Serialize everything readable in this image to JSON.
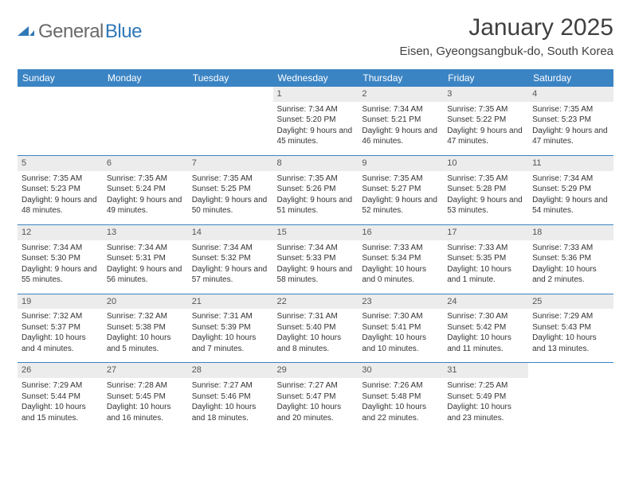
{
  "logo": {
    "text1": "General",
    "text2": "Blue"
  },
  "title": "January 2025",
  "location": "Eisen, Gyeongsangbuk-do, South Korea",
  "columns": [
    "Sunday",
    "Monday",
    "Tuesday",
    "Wednesday",
    "Thursday",
    "Friday",
    "Saturday"
  ],
  "colors": {
    "header_bg": "#3b84c4",
    "header_fg": "#ffffff",
    "daynum_bg": "#ececec",
    "border": "#3b84c4",
    "logo_gray": "#6a6a6a",
    "logo_blue": "#2f78b8"
  },
  "weeks": [
    [
      null,
      null,
      null,
      {
        "n": "1",
        "sr": "7:34 AM",
        "ss": "5:20 PM",
        "dl": "9 hours and 45 minutes."
      },
      {
        "n": "2",
        "sr": "7:34 AM",
        "ss": "5:21 PM",
        "dl": "9 hours and 46 minutes."
      },
      {
        "n": "3",
        "sr": "7:35 AM",
        "ss": "5:22 PM",
        "dl": "9 hours and 47 minutes."
      },
      {
        "n": "4",
        "sr": "7:35 AM",
        "ss": "5:23 PM",
        "dl": "9 hours and 47 minutes."
      }
    ],
    [
      {
        "n": "5",
        "sr": "7:35 AM",
        "ss": "5:23 PM",
        "dl": "9 hours and 48 minutes."
      },
      {
        "n": "6",
        "sr": "7:35 AM",
        "ss": "5:24 PM",
        "dl": "9 hours and 49 minutes."
      },
      {
        "n": "7",
        "sr": "7:35 AM",
        "ss": "5:25 PM",
        "dl": "9 hours and 50 minutes."
      },
      {
        "n": "8",
        "sr": "7:35 AM",
        "ss": "5:26 PM",
        "dl": "9 hours and 51 minutes."
      },
      {
        "n": "9",
        "sr": "7:35 AM",
        "ss": "5:27 PM",
        "dl": "9 hours and 52 minutes."
      },
      {
        "n": "10",
        "sr": "7:35 AM",
        "ss": "5:28 PM",
        "dl": "9 hours and 53 minutes."
      },
      {
        "n": "11",
        "sr": "7:34 AM",
        "ss": "5:29 PM",
        "dl": "9 hours and 54 minutes."
      }
    ],
    [
      {
        "n": "12",
        "sr": "7:34 AM",
        "ss": "5:30 PM",
        "dl": "9 hours and 55 minutes."
      },
      {
        "n": "13",
        "sr": "7:34 AM",
        "ss": "5:31 PM",
        "dl": "9 hours and 56 minutes."
      },
      {
        "n": "14",
        "sr": "7:34 AM",
        "ss": "5:32 PM",
        "dl": "9 hours and 57 minutes."
      },
      {
        "n": "15",
        "sr": "7:34 AM",
        "ss": "5:33 PM",
        "dl": "9 hours and 58 minutes."
      },
      {
        "n": "16",
        "sr": "7:33 AM",
        "ss": "5:34 PM",
        "dl": "10 hours and 0 minutes."
      },
      {
        "n": "17",
        "sr": "7:33 AM",
        "ss": "5:35 PM",
        "dl": "10 hours and 1 minute."
      },
      {
        "n": "18",
        "sr": "7:33 AM",
        "ss": "5:36 PM",
        "dl": "10 hours and 2 minutes."
      }
    ],
    [
      {
        "n": "19",
        "sr": "7:32 AM",
        "ss": "5:37 PM",
        "dl": "10 hours and 4 minutes."
      },
      {
        "n": "20",
        "sr": "7:32 AM",
        "ss": "5:38 PM",
        "dl": "10 hours and 5 minutes."
      },
      {
        "n": "21",
        "sr": "7:31 AM",
        "ss": "5:39 PM",
        "dl": "10 hours and 7 minutes."
      },
      {
        "n": "22",
        "sr": "7:31 AM",
        "ss": "5:40 PM",
        "dl": "10 hours and 8 minutes."
      },
      {
        "n": "23",
        "sr": "7:30 AM",
        "ss": "5:41 PM",
        "dl": "10 hours and 10 minutes."
      },
      {
        "n": "24",
        "sr": "7:30 AM",
        "ss": "5:42 PM",
        "dl": "10 hours and 11 minutes."
      },
      {
        "n": "25",
        "sr": "7:29 AM",
        "ss": "5:43 PM",
        "dl": "10 hours and 13 minutes."
      }
    ],
    [
      {
        "n": "26",
        "sr": "7:29 AM",
        "ss": "5:44 PM",
        "dl": "10 hours and 15 minutes."
      },
      {
        "n": "27",
        "sr": "7:28 AM",
        "ss": "5:45 PM",
        "dl": "10 hours and 16 minutes."
      },
      {
        "n": "28",
        "sr": "7:27 AM",
        "ss": "5:46 PM",
        "dl": "10 hours and 18 minutes."
      },
      {
        "n": "29",
        "sr": "7:27 AM",
        "ss": "5:47 PM",
        "dl": "10 hours and 20 minutes."
      },
      {
        "n": "30",
        "sr": "7:26 AM",
        "ss": "5:48 PM",
        "dl": "10 hours and 22 minutes."
      },
      {
        "n": "31",
        "sr": "7:25 AM",
        "ss": "5:49 PM",
        "dl": "10 hours and 23 minutes."
      },
      null
    ]
  ],
  "labels": {
    "sunrise": "Sunrise: ",
    "sunset": "Sunset: ",
    "daylight": "Daylight: "
  }
}
